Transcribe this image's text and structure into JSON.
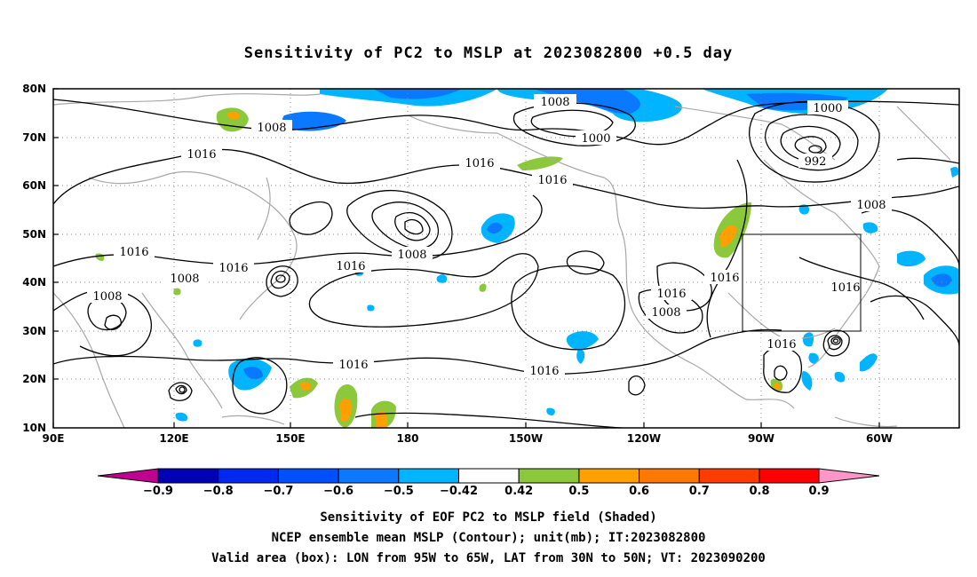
{
  "title": "Sensitivity of PC2 to MSLP at 2023082800 +0.5 day",
  "map": {
    "lon_labels": [
      "90E",
      "120E",
      "150E",
      "180",
      "150W",
      "120W",
      "90W",
      "60W"
    ],
    "lat_labels": [
      "80N",
      "70N",
      "60N",
      "50N",
      "40N",
      "30N",
      "20N",
      "10N"
    ],
    "contour_labels": [
      "1008",
      "1000",
      "1000",
      "992",
      "1016",
      "1016",
      "1016",
      "1016",
      "1016",
      "1016",
      "1008",
      "1008",
      "1016",
      "1016",
      "1016",
      "1008",
      "1008",
      "1016",
      "1016",
      "1016",
      "1008",
      "1008"
    ],
    "valid_box": {
      "lon_west": -95,
      "lon_east": -65,
      "lat_south": 30,
      "lat_north": 50
    }
  },
  "colorbar": {
    "labels": [
      "−0.9",
      "−0.8",
      "−0.7",
      "−0.6",
      "−0.5",
      "−0.42",
      "0.42",
      "0.5",
      "0.6",
      "0.7",
      "0.8",
      "0.9"
    ],
    "colors": [
      "#c0008f",
      "#0000b4",
      "#0028f0",
      "#0050ff",
      "#0a78ff",
      "#00b4ff",
      "#ffffff",
      "#8cc83c",
      "#ffa000",
      "#ff7800",
      "#ff3c00",
      "#ff0000",
      "#ff96c8"
    ]
  },
  "captions": {
    "line1": "Sensitivity of EOF PC2 to MSLP field (Shaded)",
    "line2": "NCEP ensemble mean MSLP (Contour); unit(mb); IT:2023082800",
    "line3": "Valid area (box): LON from 95W to 65W, LAT from 30N to 50N; VT: 2023090200"
  }
}
